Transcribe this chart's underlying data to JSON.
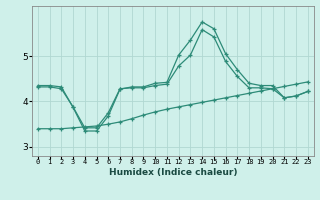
{
  "x": [
    0,
    1,
    2,
    3,
    4,
    5,
    6,
    7,
    8,
    9,
    10,
    11,
    12,
    13,
    14,
    15,
    16,
    17,
    18,
    19,
    20,
    21,
    22,
    23
  ],
  "line1": [
    4.35,
    4.35,
    4.32,
    3.87,
    3.35,
    3.35,
    3.68,
    4.27,
    4.32,
    4.32,
    4.4,
    4.42,
    5.02,
    5.35,
    5.75,
    5.6,
    5.05,
    4.7,
    4.4,
    4.35,
    4.35,
    4.08,
    4.12,
    4.22
  ],
  "line2": [
    4.32,
    4.32,
    4.28,
    3.88,
    3.42,
    3.42,
    3.75,
    4.28,
    4.3,
    4.3,
    4.35,
    4.38,
    4.78,
    5.02,
    5.58,
    5.42,
    4.88,
    4.55,
    4.3,
    4.3,
    4.28,
    4.08,
    4.12,
    4.22
  ],
  "line3": [
    3.4,
    3.4,
    3.4,
    3.42,
    3.44,
    3.46,
    3.5,
    3.55,
    3.62,
    3.7,
    3.77,
    3.83,
    3.88,
    3.93,
    3.98,
    4.03,
    4.08,
    4.13,
    4.18,
    4.23,
    4.28,
    4.33,
    4.38,
    4.43
  ],
  "line_color": "#2d8b78",
  "bg_color": "#cff0ea",
  "grid_color": "#b0d8d2",
  "xlabel": "Humidex (Indice chaleur)",
  "ylim": [
    2.8,
    6.1
  ],
  "xlim": [
    -0.5,
    23.5
  ],
  "yticks": [
    3,
    4,
    5
  ],
  "xtick_labels": [
    "0",
    "1",
    "2",
    "3",
    "4",
    "5",
    "6",
    "7",
    "8",
    "9",
    "10",
    "11",
    "12",
    "13",
    "14",
    "15",
    "16",
    "17",
    "18",
    "19",
    "20",
    "21",
    "22",
    "23"
  ]
}
